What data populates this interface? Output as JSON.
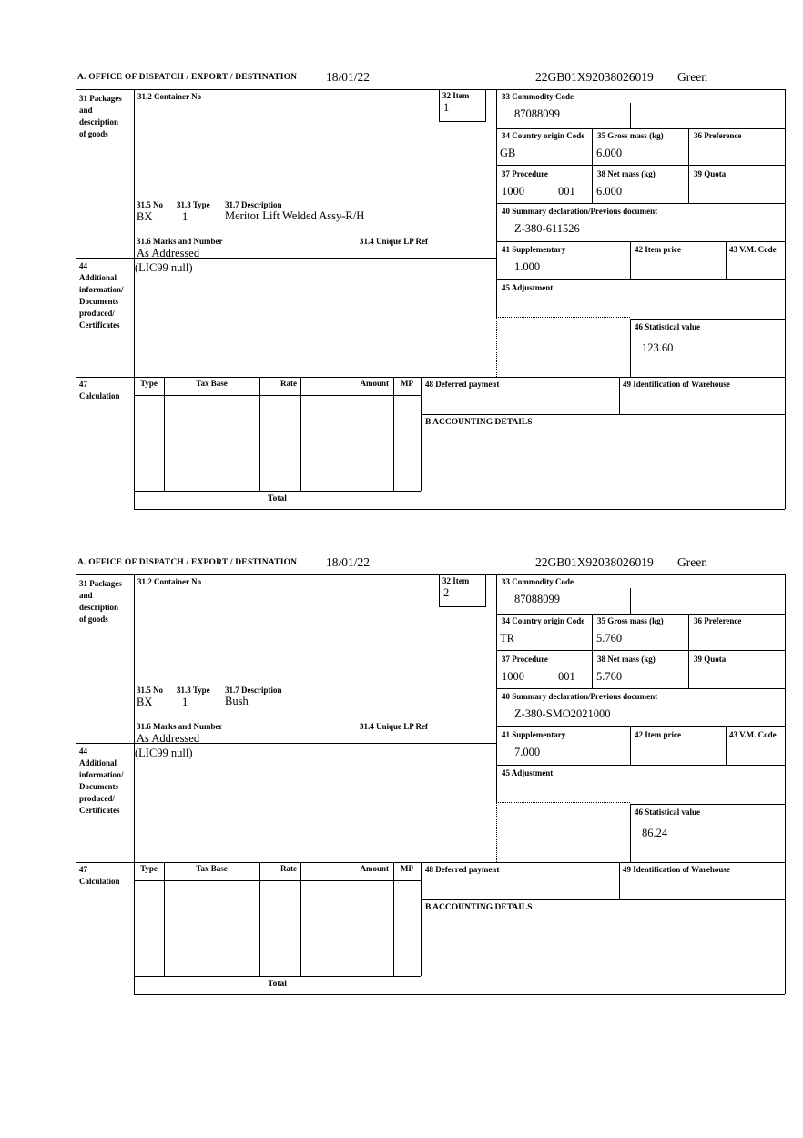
{
  "labels": {
    "header_a": "A. OFFICE OF DISPATCH / EXPORT / DESTINATION",
    "box31": [
      "31 Packages",
      "and",
      "description",
      "of goods"
    ],
    "box31_2": "31.2 Container No",
    "box32": "32 Item",
    "box33": "33 Commodity Code",
    "box34": "34 Country origin Code",
    "box35": "35 Gross mass (kg)",
    "box36": "36 Preference",
    "box37": "37 Procedure",
    "box38": "38 Net mass (kg)",
    "box39": "39 Quota",
    "box40": "40 Summary declaration/Previous document",
    "box41": "41 Supplementary",
    "box42": "42 Item price",
    "box43": "43 V.M. Code",
    "box31_5": "31.5 No",
    "box31_3": "31.3 Type",
    "box31_7": "31.7 Description",
    "box31_6": "31.6 Marks and Number",
    "box31_4": "31.4 Unique LP Ref",
    "box44": [
      "44",
      "Additional",
      "information/",
      "Documents",
      "produced/",
      "Certificates"
    ],
    "box45": "45 Adjustment",
    "box46": "46 Statistical value",
    "box47": [
      "47",
      "Calculation"
    ],
    "box48": "48 Deferred payment",
    "box49": "49 Identification of Warehouse",
    "accounting": "B ACCOUNTING DETAILS",
    "calc_headers": {
      "type": "Type",
      "tax_base": "Tax Base",
      "rate": "Rate",
      "amount": "Amount",
      "mp": "MP"
    },
    "total": "Total"
  },
  "items": [
    {
      "date": "18/01/22",
      "entry_ref": "22GB01X92038026019",
      "route": "Green",
      "item_no": "1",
      "container_no": "",
      "commodity_code": "87088099",
      "country_origin": "GB",
      "gross_mass": "6.000",
      "preference": "",
      "procedure": "1000",
      "procedure_2": "001",
      "net_mass": "6.000",
      "quota": "",
      "previous_document": "Z-380-611526",
      "supplementary": "1.000",
      "item_price": "",
      "vm_code": "",
      "adjustment": "",
      "statistical_value": "123.60",
      "package_no": "BX",
      "package_type": "1",
      "description": "Meritor Lift Welded Assy-R/H",
      "marks": "As Addressed",
      "unique_lp_ref": "",
      "additional_info": "(LIC99 null)"
    },
    {
      "date": "18/01/22",
      "entry_ref": "22GB01X92038026019",
      "route": "Green",
      "item_no": "2",
      "container_no": "",
      "commodity_code": "87088099",
      "country_origin": "TR",
      "gross_mass": "5.760",
      "preference": "",
      "procedure": "1000",
      "procedure_2": "001",
      "net_mass": "5.760",
      "quota": "",
      "previous_document": "Z-380-SMO2021000",
      "supplementary": "7.000",
      "item_price": "",
      "vm_code": "",
      "adjustment": "",
      "statistical_value": "86.24",
      "package_no": "BX",
      "package_type": "1",
      "description": "Bush",
      "marks": "As Addressed",
      "unique_lp_ref": "",
      "additional_info": "(LIC99 null)"
    }
  ]
}
